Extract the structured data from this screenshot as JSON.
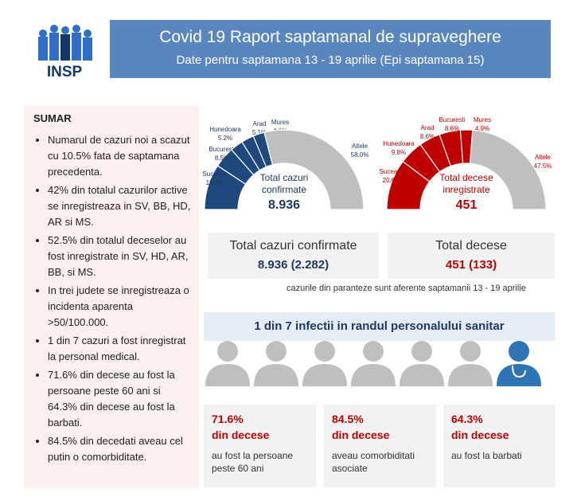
{
  "logo": {
    "text": "INSP"
  },
  "header": {
    "title": "Covid 19 Raport saptamanal de supraveghere",
    "subtitle": "Date pentru saptamana 13 - 19 aprilie (Epi saptamana 15)"
  },
  "sumar": {
    "title": "SUMAR",
    "items": [
      "Numarul de cazuri noi a scazut cu 10.5% fata de saptamana precedenta.",
      "42% din totalul cazurilor active se inregistreaza in SV, BB, HD, AR si MS.",
      "52.5% din totalul deceselor au fost inregistrate in SV, HD, AR, BB, si MS.",
      "In trei judete se inregistreaza o incidenta aparenta >50/100.000.",
      "1 din 7 cazuri a fost inregistrat la personal medical.",
      "71.6% din decese au fost la persoane peste 60 ani si 64.3% din decese au fost la barbati.",
      "84.5% din decedati aveau cel putin o comorbiditate."
    ]
  },
  "chart_data": [
    {
      "type": "pie",
      "subtype": "semi-donut",
      "title": "Total cazuri confirmate",
      "total": "8.936",
      "color": "#1f497d",
      "other_color": "#bfbfbf",
      "slices": [
        {
          "label": "Suceava",
          "value": 18.5,
          "text": "18.5%"
        },
        {
          "label": "Bucuresti",
          "value": 8.5,
          "text": "8.5%"
        },
        {
          "label": "Hunedoara",
          "value": 5.2,
          "text": "5.2%"
        },
        {
          "label": "Arad",
          "value": 5.1,
          "text": "5.1%"
        },
        {
          "label": "Mures",
          "value": 4.6,
          "text": "4.6%"
        },
        {
          "label": "Altele",
          "value": 58.0,
          "text": "58.0%"
        }
      ]
    },
    {
      "type": "pie",
      "subtype": "semi-donut",
      "title": "Total decese inregistrate",
      "total": "451",
      "color": "#c00000",
      "other_color": "#bfbfbf",
      "slices": [
        {
          "label": "Suceava",
          "value": 20.6,
          "text": "20.6%"
        },
        {
          "label": "Hunedoara",
          "value": 9.8,
          "text": "9.8%"
        },
        {
          "label": "Arad",
          "value": 8.6,
          "text": "8.6%"
        },
        {
          "label": "Bucuresti",
          "value": 8.6,
          "text": "8.6%"
        },
        {
          "label": "Mures",
          "value": 4.9,
          "text": "4.9%"
        },
        {
          "label": "Altele",
          "value": 47.5,
          "text": "47.5%"
        }
      ]
    }
  ],
  "totals": {
    "cases_label": "Total cazuri confirmate",
    "cases_value": "8.936 (2.282)",
    "deaths_label": "Total decese",
    "deaths_value": "451 (133)",
    "note": "cazurile din paranteze sunt aferente saptamanii 13 - 19 aprilie"
  },
  "medical": {
    "banner": "1 din 7 infectii in randul personalului sanitar",
    "people": 7,
    "highlighted": 1
  },
  "stats": [
    {
      "pct": "71.6%",
      "label": "din decese",
      "desc": "au fost la persoane peste 60 ani"
    },
    {
      "pct": "84.5%",
      "label": "din decese",
      "desc": "aveau comorbiditati asociate"
    },
    {
      "pct": "64.3%",
      "label": "din decese",
      "desc": "au fost la barbati"
    }
  ]
}
